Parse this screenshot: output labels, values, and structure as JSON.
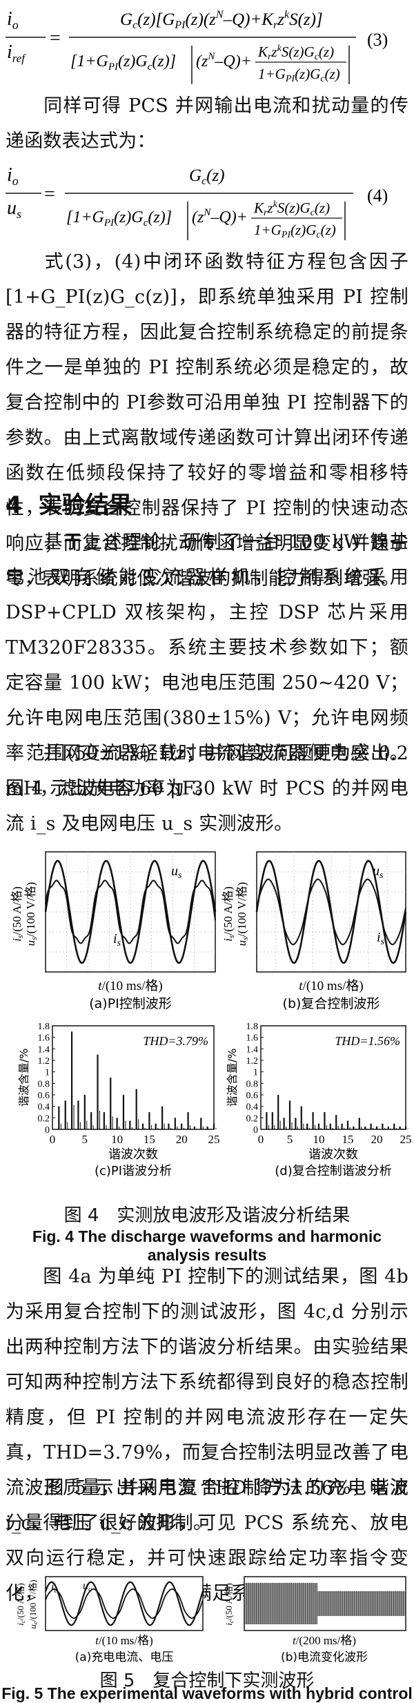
{
  "equation3": {
    "lhs_num": "i",
    "lhs_num_sub": "o",
    "lhs_den": "i",
    "lhs_den_sub": "ref",
    "number": "(3)"
  },
  "para1": "同样可得 PCS 并网输出电流和扰动量的传递函数表达式为：",
  "equation4": {
    "lhs_num": "i",
    "lhs_num_sub": "o",
    "lhs_den": "u",
    "lhs_den_sub": "s",
    "number": "(4)"
  },
  "para2": "式(3)，(4)中闭环函数特征方程包含因子[1+G_PI(z)G_c(z)]，即系统单独采用 PI 控制器的特征方程，因此复合控制系统稳定的前提条件之一是单独的 PI 控制系统必须是稳定的，故复合控制中的 PI参数可沿用单独 PI 控制器下的参数。由上式离散域传递函数可计算出闭环传递函数在低频段保持了较好的零增益和零相移特性，表明复合控制器保持了 PI 控制的快速动态响应；而复合控制扰动传函增益明显变小并趋于零，表明系统对低次谐波的抑制能力得到增强。",
  "section": {
    "number": "4",
    "title": "实验结果"
  },
  "para3": "基于上述理论，研制了一台 100 kW 镍盐电池双向储能变流器样机，控制系统采用 DSP+CPLD 双核架构，主控 DSP 芯片采用 TM320F28335。系统主要技术参数如下；额定容量 100 kW；电池电压范围 250~420 V；允许电网电压范围(380±15%) V；允许电网频率范围(50±1%) Hz；并网变流器侧电感 0.2 mH，滤波电容 60 μF。",
  "para4": "并网变流器轻载时电流谐波问题更为突出。图 4 示出放电功率为 30 kW 时 PCS 的并网电流 i_s 及电网电压 u_s 实测波形。",
  "fig4": {
    "panels": [
      {
        "caption": "(a)PI控制波形",
        "xlabel": "t/(10 ms/格)",
        "ylabel": "i_s/(50 A/格)\nu_s/(100 V/格)",
        "u_label": "u_s",
        "i_label": "i_s"
      },
      {
        "caption": "(b)复合控制波形",
        "xlabel": "t/(10 ms/格)",
        "ylabel": "i_s/(50 A/格)\nu_s/(100 V/格)",
        "u_label": "u_s",
        "i_label": "i_s"
      }
    ],
    "spectra": [
      {
        "caption": "(c)PI谐波分析",
        "thd": "THD=3.79%",
        "xlabel": "谐波次数",
        "ylabel": "谐波含量/%"
      },
      {
        "caption": "(d)复合控制谐波分析",
        "thd": "THD=1.56%",
        "xlabel": "谐波次数",
        "ylabel": "谐波含量/%"
      }
    ],
    "caption_cn": "图 4　实测放电波形及谐波分析结果",
    "caption_en": "Fig. 4 The discharge waveforms and harmonic analysis results"
  },
  "chart_data": [
    {
      "type": "bar",
      "title": "(c)PI谐波分析",
      "annotation": "THD=3.79%",
      "xlabel": "谐波次数",
      "ylabel": "谐波含量/%",
      "xlim": [
        0,
        25
      ],
      "ylim": [
        0,
        1.8
      ],
      "xticks": [
        0,
        5,
        10,
        15,
        20,
        25
      ],
      "yticks": [
        0,
        0.2,
        0.4,
        0.6,
        0.8,
        1.0,
        1.2,
        1.4,
        1.6,
        1.8
      ],
      "x": [
        1,
        2,
        3,
        4,
        5,
        6,
        7,
        8,
        9,
        10,
        11,
        12,
        13,
        14,
        15,
        16,
        17,
        18,
        19,
        20,
        21,
        22,
        23,
        24,
        25
      ],
      "values": [
        0.4,
        0.5,
        1.7,
        0.5,
        0.6,
        0.3,
        1.3,
        0.3,
        0.9,
        0.2,
        0.6,
        0.15,
        0.7,
        0.1,
        0.3,
        0.1,
        0.4,
        0.1,
        0.2,
        0.1,
        0.3,
        0.05,
        0.2,
        0.05,
        0.1
      ]
    },
    {
      "type": "bar",
      "title": "(d)复合控制谐波分析",
      "annotation": "THD=1.56%",
      "xlabel": "谐波次数",
      "ylabel": "谐波含量/%",
      "xlim": [
        0,
        25
      ],
      "ylim": [
        0,
        1.8
      ],
      "xticks": [
        0,
        5,
        10,
        15,
        20,
        25
      ],
      "yticks": [
        0,
        0.2,
        0.4,
        0.6,
        0.8,
        1.0,
        1.2,
        1.4,
        1.6,
        1.8
      ],
      "x": [
        1,
        2,
        3,
        4,
        5,
        6,
        7,
        8,
        9,
        10,
        11,
        12,
        13,
        14,
        15,
        16,
        17,
        18,
        19,
        20,
        21,
        22,
        23,
        24,
        25
      ],
      "values": [
        0.3,
        0.3,
        0.6,
        0.2,
        0.5,
        0.2,
        0.4,
        0.1,
        0.3,
        0.1,
        0.3,
        0.1,
        0.25,
        0.1,
        0.15,
        0.05,
        0.2,
        0.05,
        0.1,
        0.05,
        0.1,
        0.05,
        0.1,
        0.05,
        0.05
      ]
    }
  ],
  "para5": "图 4a 为单纯 PI 控制下的测试结果，图 4b 为采用复合控制下的测试波形，图 4c,d 分别示出两种控制方法下的谐波分析结果。由实验结果可知两种控制方法下系统都得到良好的稳态控制精度，但 PI 控制的并网电流波形存在一定失真，THD=3.79%，而复合控制法明显改善了电流波形质量，并网电流 THD 降为1.56%，谐波分量得到了很好的抑制。",
  "para6": "图 5 示出采用复合控制方法的充电电流 i_c、电压 u_c 波形，可见 PCS 系统充、放电双向运行稳定，并可快速跟踪给定功率指令变化，电流波形畸变小，满足系统控制要求。",
  "fig5": {
    "panels": [
      {
        "caption": "(a)充电电流、电压",
        "xlabel": "t/(10 ms/格)",
        "ylabel": "i_c/(50 A/格)\nu_c/(100 V/格)"
      },
      {
        "caption": "(b)电流变化波形",
        "xlabel": "t/(200 ms/格)",
        "ylabel": "i_c/(50 A/格)"
      }
    ],
    "caption_cn": "图 5　复合控制下实测波形",
    "caption_en": "Fig. 5 The experimental waveforms with hybrid control"
  }
}
